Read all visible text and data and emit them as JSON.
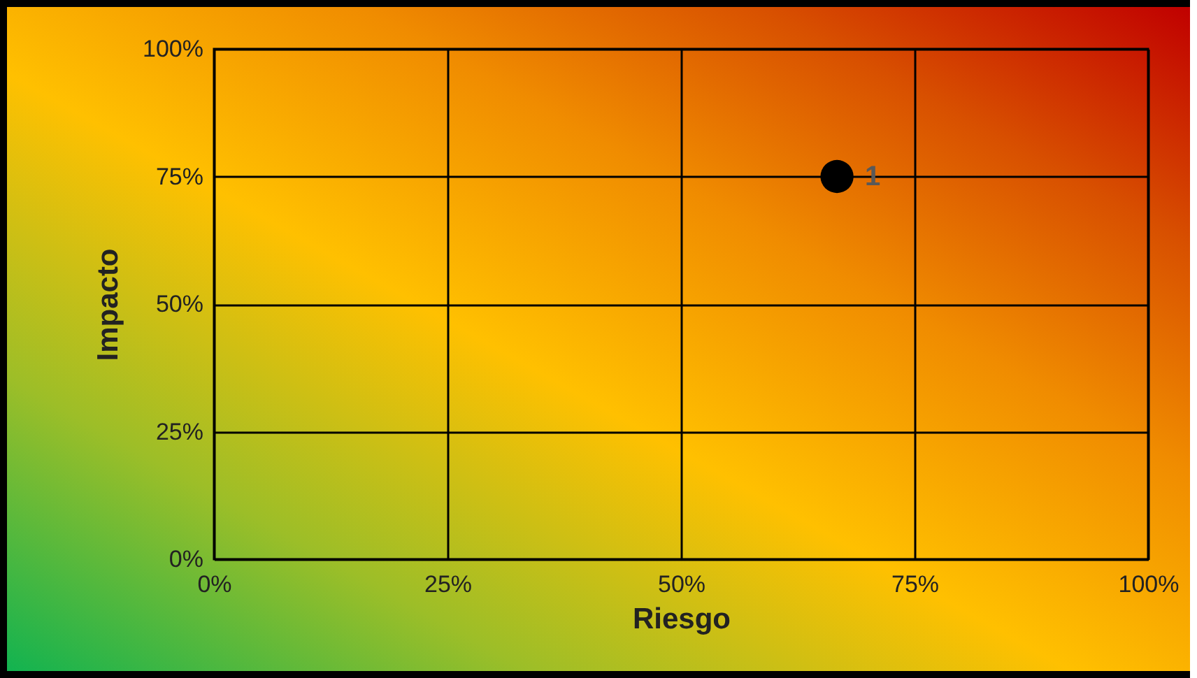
{
  "chart_data": {
    "type": "scatter",
    "xlabel": "Riesgo",
    "ylabel": "Impacto",
    "x": [
      66.7
    ],
    "values": [
      75
    ],
    "color": "#000000",
    "marker": "circle",
    "xlim": [
      0,
      100
    ],
    "ylim": [
      0,
      100
    ],
    "xticks": [
      {
        "value": 0,
        "label": "0%"
      },
      {
        "value": 25,
        "label": "25%"
      },
      {
        "value": 50,
        "label": "50%"
      },
      {
        "value": 75,
        "label": "75%"
      },
      {
        "value": 100,
        "label": "100%"
      }
    ],
    "yticks": [
      {
        "value": 0,
        "label": "0%"
      },
      {
        "value": 25,
        "label": "25%"
      },
      {
        "value": 50,
        "label": "50%"
      },
      {
        "value": 75,
        "label": "75%"
      },
      {
        "value": 100,
        "label": "100%"
      }
    ],
    "grid": true,
    "annotations": [
      {
        "text": "1",
        "x": 66.7,
        "y": 75
      }
    ]
  }
}
